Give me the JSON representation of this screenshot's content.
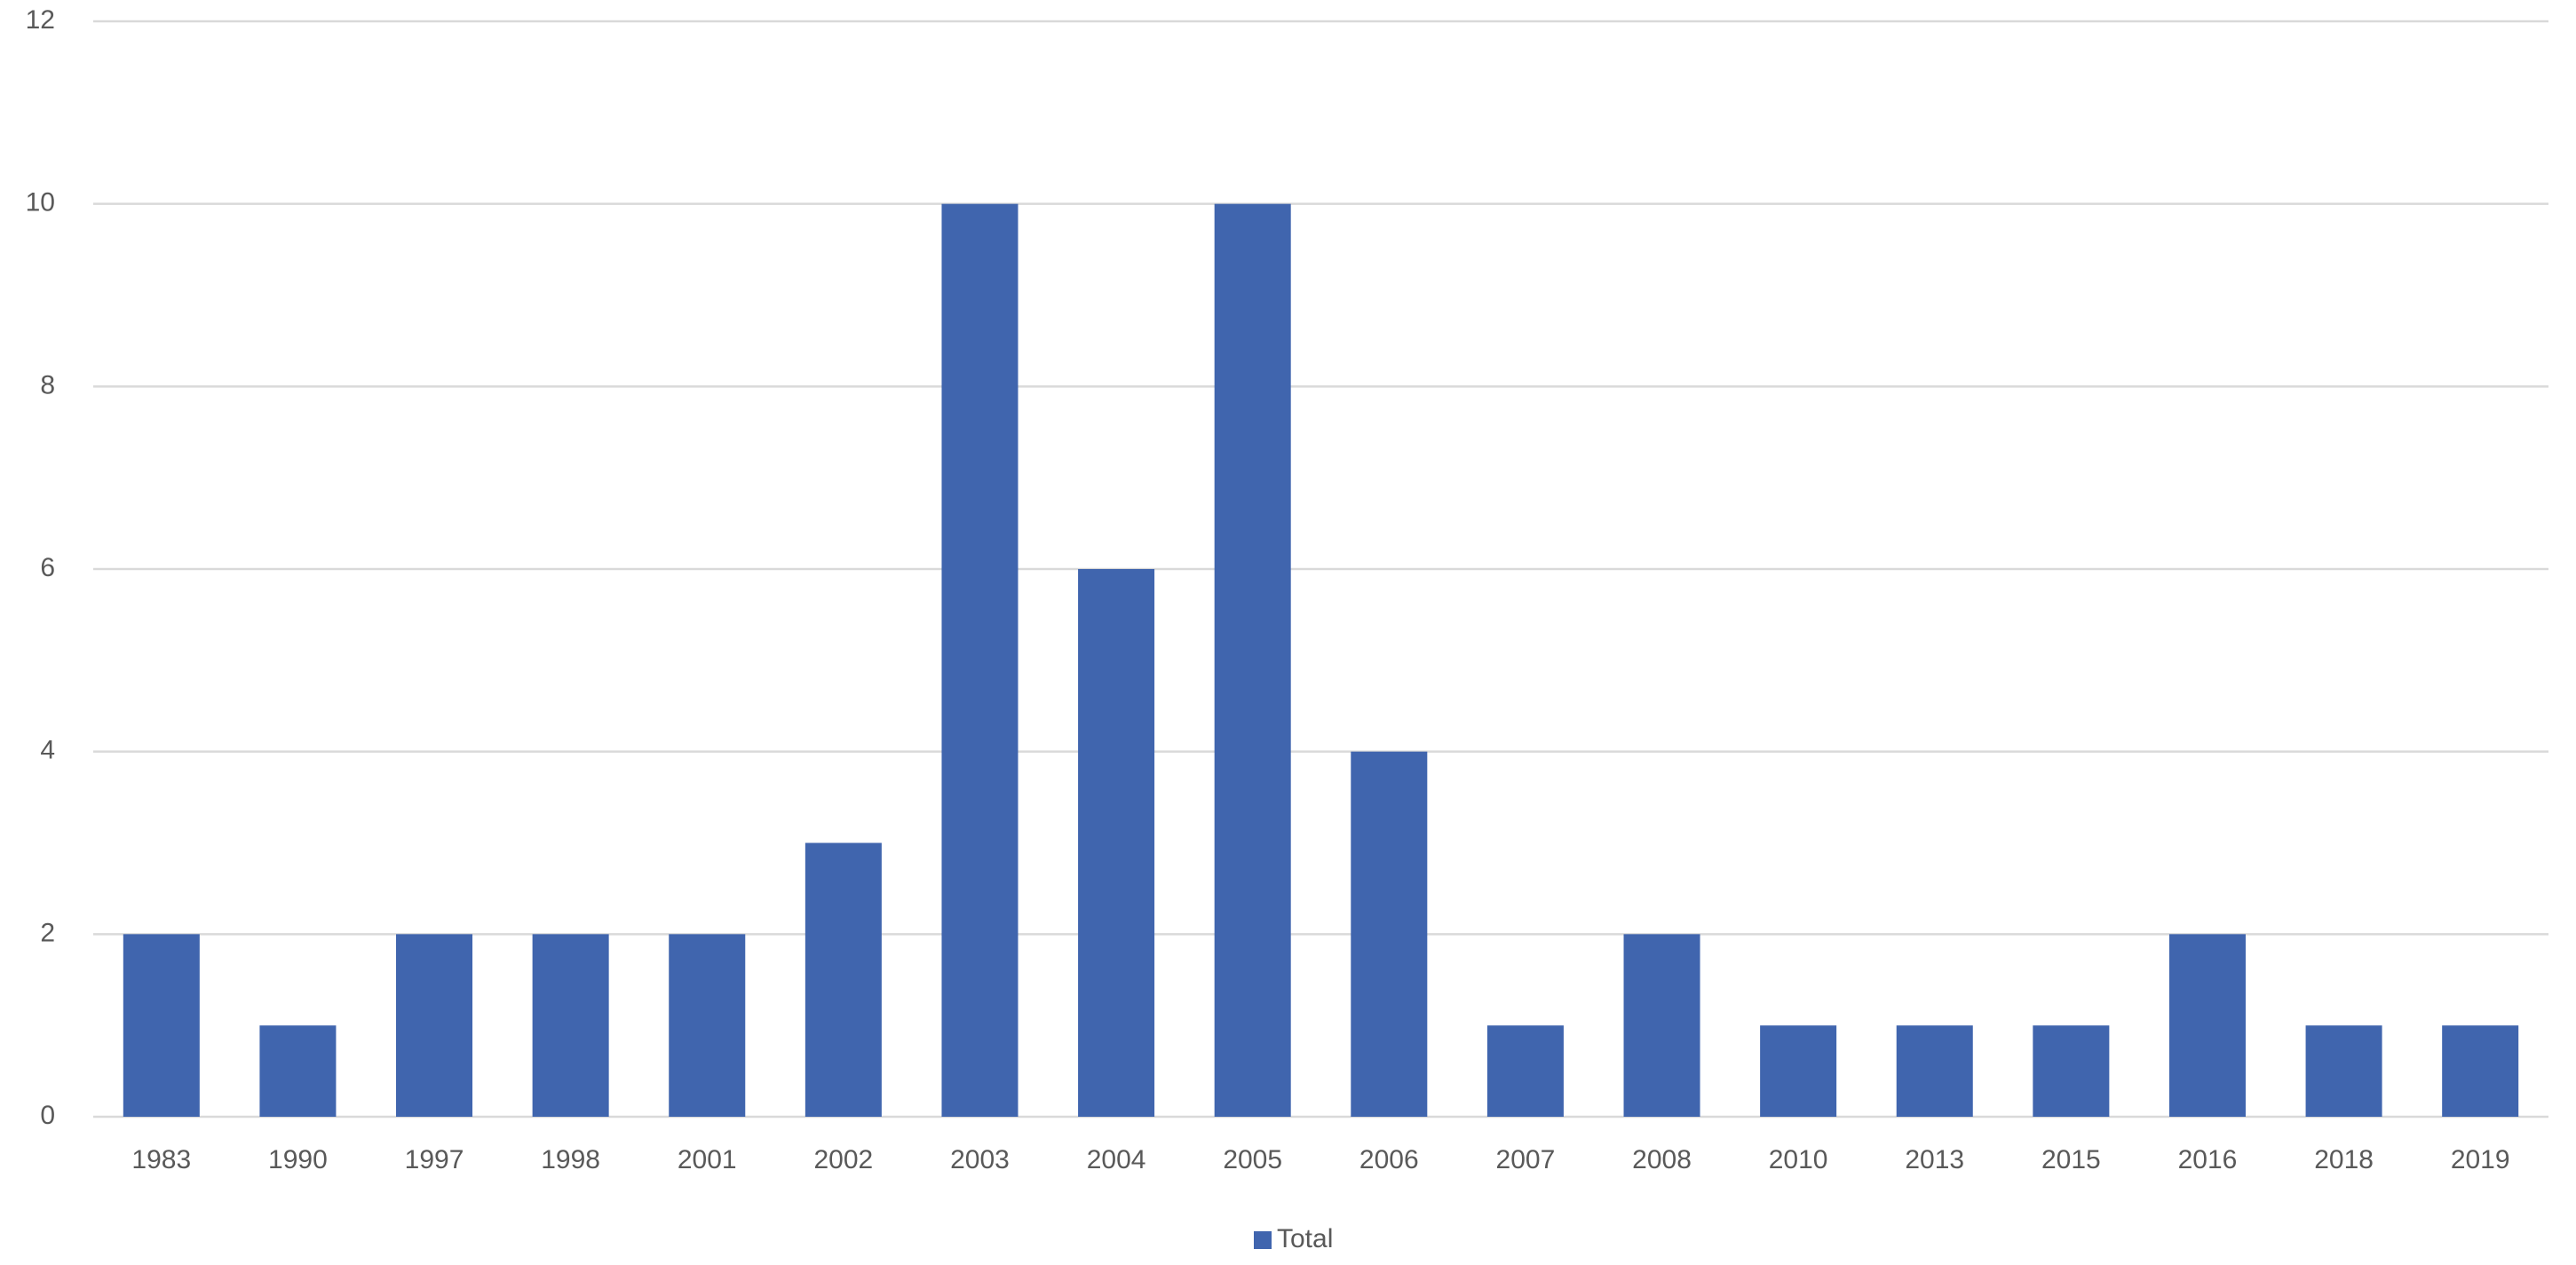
{
  "chart_data": {
    "type": "bar",
    "categories": [
      "1983",
      "1990",
      "1997",
      "1998",
      "2001",
      "2002",
      "2003",
      "2004",
      "2005",
      "2006",
      "2007",
      "2008",
      "2010",
      "2013",
      "2015",
      "2016",
      "2018",
      "2019"
    ],
    "series": [
      {
        "name": "Total",
        "color": "#4065ae",
        "values": [
          2,
          1,
          2,
          2,
          2,
          3,
          10,
          6,
          10,
          4,
          1,
          2,
          1,
          1,
          1,
          2,
          1,
          1
        ]
      }
    ],
    "ylim": [
      0,
      12
    ],
    "yticks": [
      0,
      2,
      4,
      6,
      8,
      10,
      12
    ],
    "grid": true,
    "legend": "bottom"
  }
}
